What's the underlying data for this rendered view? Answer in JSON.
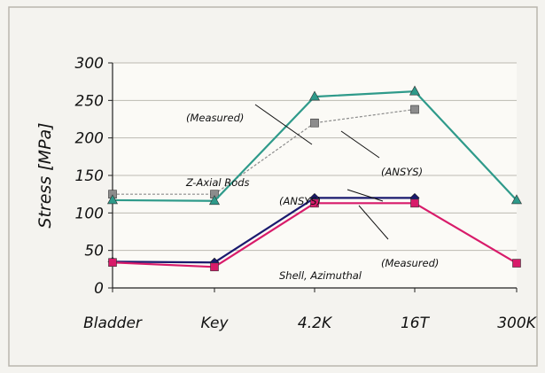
{
  "chart_data": {
    "type": "line",
    "ylabel": "Stress [MPa]",
    "xlabel": "",
    "ylim": [
      0,
      300
    ],
    "yticks": [
      0,
      50,
      100,
      150,
      200,
      250,
      300
    ],
    "grid": "horizontal",
    "categories": [
      "Bladder",
      "Key",
      "4.2K",
      "16T",
      "300K"
    ],
    "series": [
      {
        "name": "Z-Axial Rods (Measured)",
        "color": "#2e9a8a",
        "marker": "triangle",
        "values": [
          117,
          116,
          255,
          262,
          117
        ]
      },
      {
        "name": "Z-Axial Rods (ANSYS)",
        "color": "#8c8c8c",
        "marker": "square",
        "values": [
          125,
          125,
          220,
          238,
          null
        ]
      },
      {
        "name": "Shell, Azimuthal (ANSYS)",
        "color": "#1a1a6e",
        "marker": "diamond",
        "values": [
          35,
          34,
          120,
          120,
          null
        ]
      },
      {
        "name": "Shell, Azimuthal (Measured)",
        "color": "#d81b6a",
        "marker": "square",
        "values": [
          34,
          28,
          113,
          113,
          33
        ]
      }
    ],
    "annotations": [
      {
        "series": 0,
        "lines": [
          "Z-Axial Rods",
          "(Measured)"
        ]
      },
      {
        "series": 1,
        "lines": [
          "Z-Axial Rods",
          "(ANSYS)"
        ]
      },
      {
        "series": 2,
        "lines": [
          "Shell, Azimuthal",
          "(ANSYS)"
        ]
      },
      {
        "series": 3,
        "lines": [
          "Shell, Azimuthal",
          "(Measured)"
        ]
      }
    ]
  }
}
